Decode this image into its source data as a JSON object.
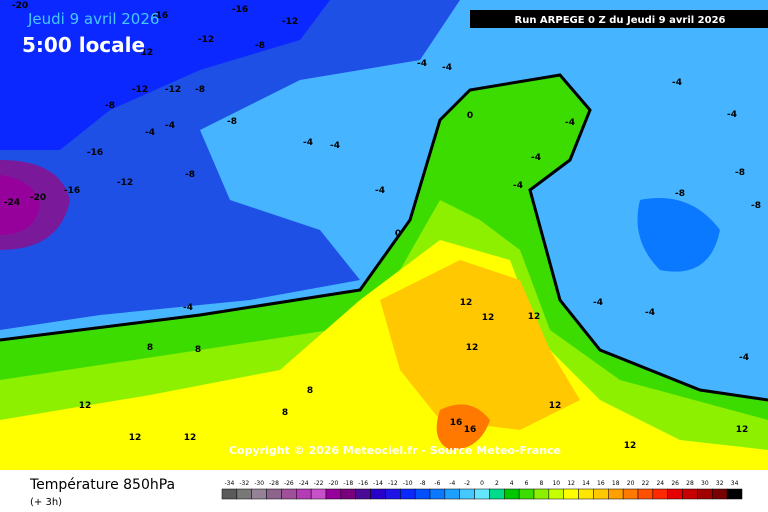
{
  "header": {
    "date": "Jeudi 9 avril 2026",
    "time": "5:00 locale",
    "run": "Run ARPEGE 0 Z du Jeudi 9 avril 2026"
  },
  "copyright": "Copyright © 2026 Meteociel.fr - Source Meteo-France",
  "footer": {
    "title": "Température 850hPa",
    "step": "(+ 3h)"
  },
  "contour_labels": [
    -20,
    -16,
    -16,
    -12,
    -12,
    -8,
    -12,
    -12,
    -12,
    -8,
    -8,
    -4,
    -8,
    -4,
    -4,
    -4,
    -16,
    -12,
    -24,
    -20,
    -16,
    -8,
    -4,
    -4,
    -4,
    0,
    0,
    -4,
    -4,
    -4,
    -8,
    -8,
    -4,
    -4,
    -4,
    8,
    8,
    8,
    12,
    12,
    12,
    12,
    12,
    8,
    12,
    12,
    16,
    16,
    12,
    12,
    12,
    -4,
    -4,
    -4,
    -8
  ],
  "legend": {
    "values": [
      -34,
      -32,
      -30,
      -28,
      -26,
      -24,
      -22,
      -20,
      -18,
      -16,
      -14,
      -12,
      -10,
      -8,
      -6,
      -4,
      -2,
      0,
      2,
      4,
      6,
      8,
      10,
      12,
      14,
      16,
      18,
      20,
      22,
      24,
      26,
      28,
      30,
      32,
      34
    ],
    "colors": [
      "#5a5a5a",
      "#787878",
      "#968296",
      "#8c648c",
      "#a0509b",
      "#b43cb4",
      "#c850c8",
      "#96009b",
      "#78007d",
      "#4b0a96",
      "#2800c8",
      "#1e14e6",
      "#0a28ff",
      "#0050ff",
      "#0a78ff",
      "#1ea0ff",
      "#46c8ff",
      "#64e6ff",
      "#00dc8c",
      "#00c800",
      "#3cdc00",
      "#8cf000",
      "#c8ff00",
      "#ffff00",
      "#ffe600",
      "#ffc800",
      "#ffa000",
      "#ff7800",
      "#ff5000",
      "#ff2800",
      "#e60000",
      "#c80000",
      "#a00000",
      "#780000",
      "#000000"
    ]
  }
}
